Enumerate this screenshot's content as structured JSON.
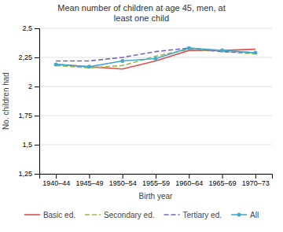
{
  "chart_data": {
    "type": "line",
    "title": "Mean number of children at age 45, men, at\nleast one child",
    "xlabel": "Birth year",
    "ylabel": "No. children had",
    "categories": [
      "1940–44",
      "1945–49",
      "1950–54",
      "1955–59",
      "1960–64",
      "1965–69",
      "1970–73"
    ],
    "series": [
      {
        "name": "Basic ed.",
        "color": "#e05050",
        "values": [
          2.19,
          2.17,
          2.15,
          2.22,
          2.31,
          2.31,
          2.32
        ],
        "line_style": "solid"
      },
      {
        "name": "Secondary ed.",
        "color": "#99bb44",
        "values": [
          2.18,
          2.16,
          2.18,
          2.26,
          2.32,
          2.3,
          2.28
        ],
        "line_style": "dashed"
      },
      {
        "name": "Tertiary ed.",
        "color": "#7766bb",
        "values": [
          2.22,
          2.22,
          2.25,
          2.3,
          2.33,
          2.3,
          2.29
        ],
        "line_style": "dashed"
      },
      {
        "name": "All",
        "color": "#44aacc",
        "values": [
          2.19,
          2.17,
          2.22,
          2.24,
          2.33,
          2.31,
          2.29
        ],
        "line_style": "solid",
        "marker": "point"
      }
    ],
    "ylim": [
      1.25,
      2.5
    ],
    "yticks": [
      {
        "value": 1.25,
        "label": "1,25"
      },
      {
        "value": 1.5,
        "label": "1,5"
      },
      {
        "value": 1.75,
        "label": "1,75"
      },
      2,
      {
        "value": 2.25,
        "label": "2,25"
      },
      {
        "value": 2.5,
        "label": "2,5"
      }
    ],
    "grid": true,
    "legend": "bottom"
  }
}
